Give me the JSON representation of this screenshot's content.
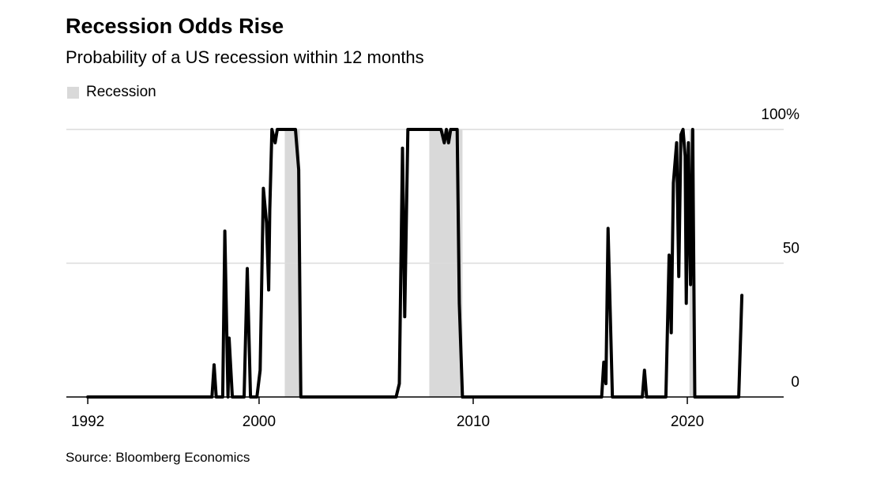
{
  "header": {
    "title": "Recession Odds Rise",
    "subtitle": "Probability of a US recession within 12 months"
  },
  "legend": {
    "label": "Recession"
  },
  "footer": {
    "source": "Source: Bloomberg Economics"
  },
  "colors": {
    "line": "#000000",
    "recession": "#d9d9d9",
    "grid": "#dcdcdc",
    "axis": "#000000"
  },
  "chart_data": {
    "type": "line",
    "title": "Recession Odds Rise",
    "subtitle": "Probability of a US recession within 12 months",
    "xlabel": "",
    "ylabel": "",
    "xlim": [
      1991,
      2024.5
    ],
    "ylim": [
      0,
      100
    ],
    "x_ticks": [
      {
        "value": 1992,
        "label": "1992"
      },
      {
        "value": 2000,
        "label": "2000"
      },
      {
        "value": 2010,
        "label": "2010"
      },
      {
        "value": 2020,
        "label": "2020"
      }
    ],
    "y_ticks": [
      {
        "value": 0,
        "label": "0"
      },
      {
        "value": 50,
        "label": "50"
      },
      {
        "value": 100,
        "label": "100%"
      }
    ],
    "recession_periods": [
      {
        "start": 2001.2,
        "end": 2001.9
      },
      {
        "start": 2007.95,
        "end": 2009.5
      },
      {
        "start": 2020.1,
        "end": 2020.35
      }
    ],
    "series": [
      {
        "name": "Probability of a US recession within 12 months",
        "points": [
          [
            1992.0,
            0
          ],
          [
            1997.8,
            0
          ],
          [
            1997.9,
            12
          ],
          [
            1998.0,
            0
          ],
          [
            1998.3,
            0
          ],
          [
            1998.4,
            62
          ],
          [
            1998.55,
            0
          ],
          [
            1998.6,
            22
          ],
          [
            1998.75,
            0
          ],
          [
            1999.3,
            0
          ],
          [
            1999.45,
            48
          ],
          [
            1999.6,
            0
          ],
          [
            1999.9,
            0
          ],
          [
            2000.05,
            10
          ],
          [
            2000.2,
            78
          ],
          [
            2000.35,
            65
          ],
          [
            2000.45,
            40
          ],
          [
            2000.5,
            70
          ],
          [
            2000.6,
            100
          ],
          [
            2000.75,
            95
          ],
          [
            2000.85,
            100
          ],
          [
            2001.7,
            100
          ],
          [
            2001.85,
            85
          ],
          [
            2001.95,
            0
          ],
          [
            2006.4,
            0
          ],
          [
            2006.55,
            5
          ],
          [
            2006.7,
            93
          ],
          [
            2006.8,
            30
          ],
          [
            2006.95,
            100
          ],
          [
            2008.5,
            100
          ],
          [
            2008.65,
            95
          ],
          [
            2008.75,
            100
          ],
          [
            2008.85,
            95
          ],
          [
            2008.95,
            100
          ],
          [
            2009.25,
            100
          ],
          [
            2009.35,
            35
          ],
          [
            2009.5,
            0
          ],
          [
            2016.0,
            0
          ],
          [
            2016.1,
            13
          ],
          [
            2016.2,
            5
          ],
          [
            2016.3,
            63
          ],
          [
            2016.5,
            0
          ],
          [
            2017.9,
            0
          ],
          [
            2018.0,
            10
          ],
          [
            2018.1,
            0
          ],
          [
            2019.0,
            0
          ],
          [
            2019.15,
            53
          ],
          [
            2019.25,
            24
          ],
          [
            2019.35,
            80
          ],
          [
            2019.5,
            95
          ],
          [
            2019.6,
            45
          ],
          [
            2019.7,
            98
          ],
          [
            2019.8,
            100
          ],
          [
            2019.9,
            90
          ],
          [
            2019.95,
            35
          ],
          [
            2020.05,
            95
          ],
          [
            2020.15,
            42
          ],
          [
            2020.25,
            100
          ],
          [
            2020.35,
            0
          ],
          [
            2022.4,
            0
          ],
          [
            2022.55,
            38
          ]
        ]
      }
    ]
  }
}
